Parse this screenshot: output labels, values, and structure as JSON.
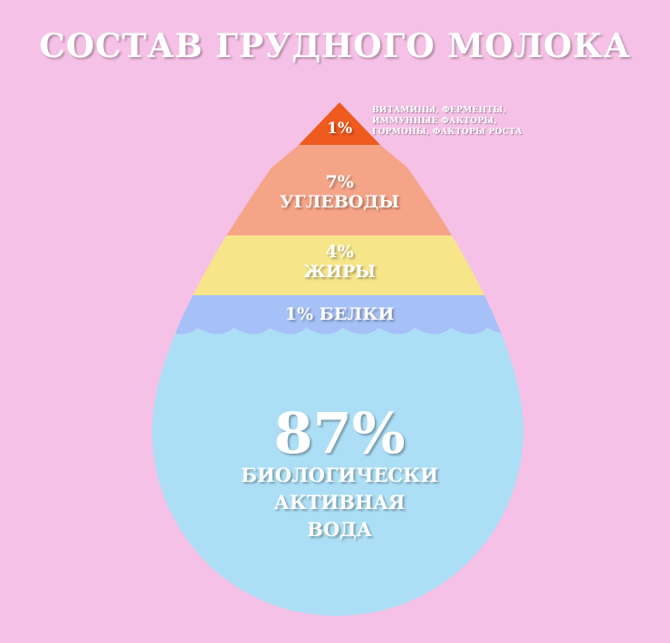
{
  "title": "СОСТАВ ГРУДНОГО МОЛОКА",
  "colors": {
    "background": "#f6c1e6",
    "tier_micro": "#ef5a1f",
    "tier_carbs": "#f5a488",
    "tier_fats": "#f6e589",
    "tier_proteins": "#a6c1f7",
    "water": "#acdff6"
  },
  "tiers": {
    "micro": {
      "percent": "1%",
      "note_lines": [
        "ВИТАМИНЫ, ФЕРМЕНТЫ,",
        "ИММУННЫЕ ФАКТОРЫ,",
        "ГОРМОНЫ, ФАКТОРЫ РОСТА"
      ]
    },
    "carbs": {
      "percent": "7%",
      "label": "УГЛЕВОДЫ"
    },
    "fats": {
      "percent": "4%",
      "label": "ЖИРЫ"
    },
    "proteins": {
      "label": "1% БЕЛКИ"
    },
    "water": {
      "percent": "87%",
      "label_lines": [
        "БИОЛОГИЧЕСКИ",
        "АКТИВНАЯ",
        "ВОДА"
      ]
    }
  }
}
